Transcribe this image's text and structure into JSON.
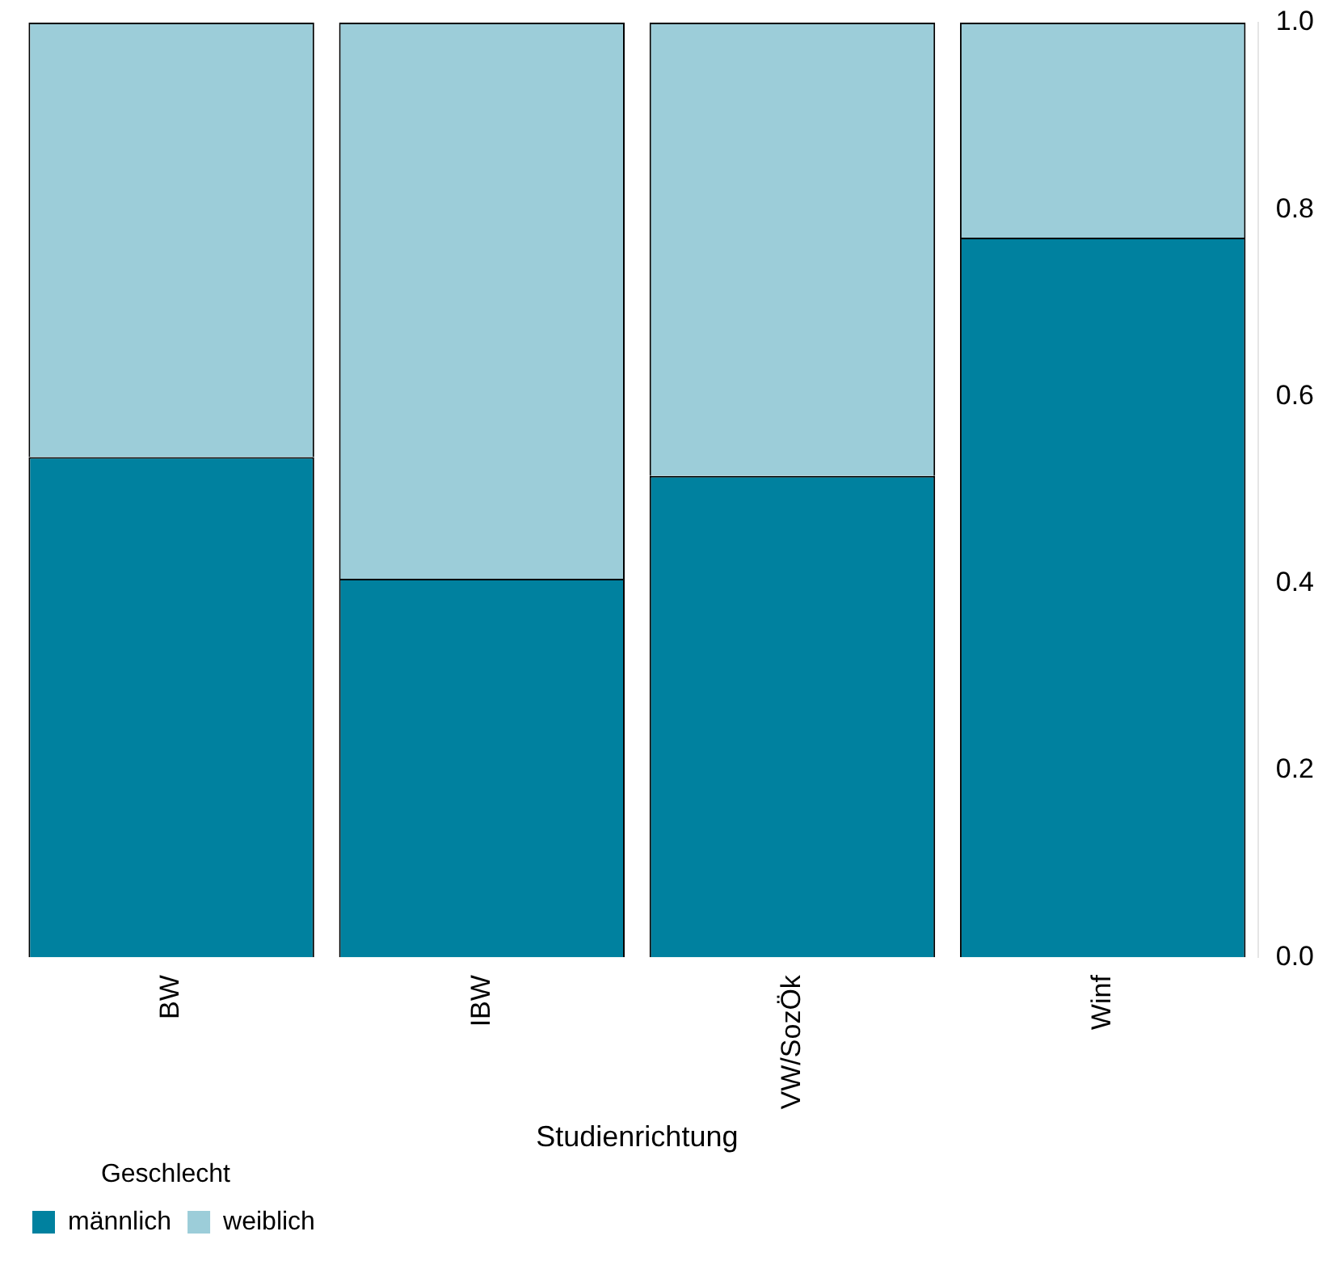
{
  "chart_data": {
    "type": "bar",
    "stacked": true,
    "xlabel": "Studienrichtung",
    "legend_title": "Geschlecht",
    "legend": "bottom left",
    "grid": false,
    "categories": [
      "BW",
      "IBW",
      "VW/SozÖk",
      "Winf"
    ],
    "series": [
      {
        "name": "männlich",
        "color": "#00819f",
        "values": [
          0.535,
          0.405,
          0.515,
          0.77
        ]
      },
      {
        "name": "weiblich",
        "color": "#9ccdd9",
        "values": [
          0.465,
          0.595,
          0.485,
          0.23
        ]
      }
    ],
    "ylim": [
      0,
      1
    ],
    "yticks": [
      {
        "value": 0,
        "label": "0.0"
      },
      0.2,
      0.4,
      0.6,
      0.8,
      {
        "value": 1,
        "label": "1.0"
      }
    ]
  }
}
